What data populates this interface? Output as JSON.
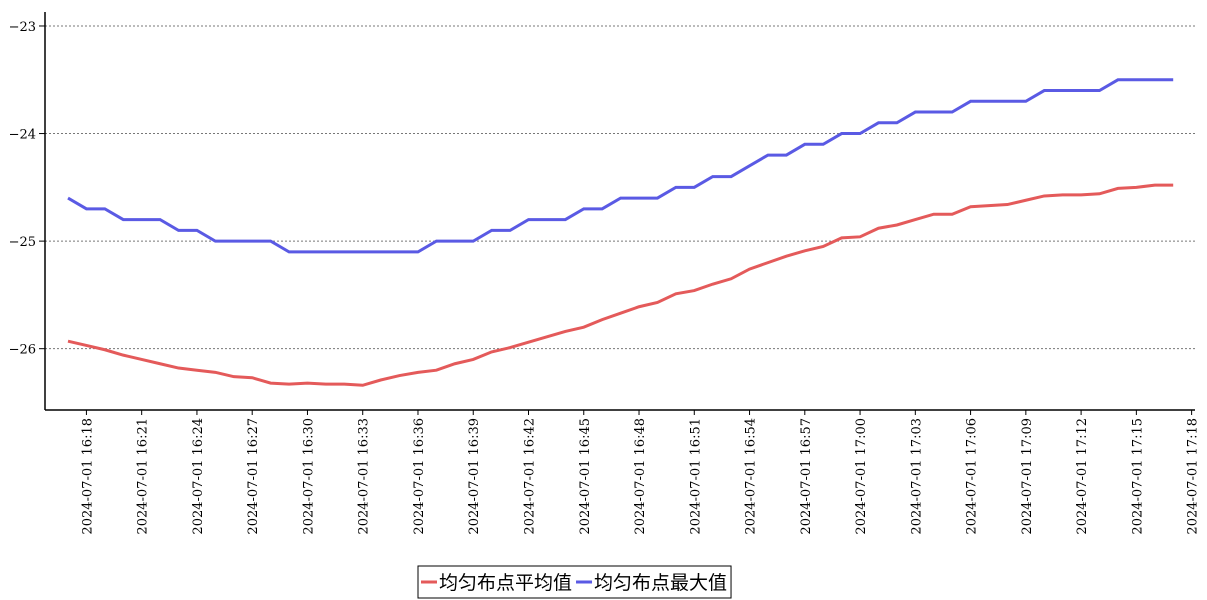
{
  "chart_data": {
    "type": "line",
    "categories": [
      null,
      "2024-07-01 16:18",
      null,
      null,
      "2024-07-01 16:21",
      null,
      null,
      "2024-07-01 16:24",
      null,
      null,
      "2024-07-01 16:27",
      null,
      null,
      "2024-07-01 16:30",
      null,
      null,
      "2024-07-01 16:33",
      null,
      null,
      "2024-07-01 16:36",
      null,
      null,
      "2024-07-01 16:39",
      null,
      null,
      "2024-07-01 16:42",
      null,
      null,
      "2024-07-01 16:45",
      null,
      null,
      "2024-07-01 16:48",
      null,
      null,
      "2024-07-01 16:51",
      null,
      null,
      "2024-07-01 16:54",
      null,
      null,
      "2024-07-01 16:57",
      null,
      null,
      "2024-07-01 17:00",
      null,
      null,
      "2024-07-01 17:03",
      null,
      null,
      "2024-07-01 17:06",
      null,
      null,
      "2024-07-01 17:09",
      null,
      null,
      "2024-07-01 17:12",
      null,
      null,
      "2024-07-01 17:15",
      null,
      null,
      "2024-07-01 17:18"
    ],
    "series": [
      {
        "name": "均匀布点平均值",
        "color": "#e45a5a",
        "values": [
          -25.93,
          -25.97,
          -26.01,
          -26.06,
          -26.1,
          -26.14,
          -26.18,
          -26.2,
          -26.22,
          -26.26,
          -26.27,
          -26.32,
          -26.33,
          -26.32,
          -26.33,
          -26.33,
          -26.34,
          -26.29,
          -26.25,
          -26.22,
          -26.2,
          -26.14,
          -26.1,
          -26.03,
          -25.99,
          -25.94,
          -25.89,
          -25.84,
          -25.8,
          -25.73,
          -25.67,
          -25.61,
          -25.57,
          -25.49,
          -25.46,
          -25.4,
          -25.35,
          -25.26,
          -25.2,
          -25.14,
          -25.09,
          -25.05,
          -24.97,
          -24.96,
          -24.88,
          -24.85,
          -24.8,
          -24.75,
          -24.75,
          -24.68,
          -24.67,
          -24.66,
          -24.62,
          -24.58,
          -24.57,
          -24.57,
          -24.56,
          -24.51,
          -24.5,
          -24.48,
          -24.48,
          null
        ]
      },
      {
        "name": "均匀布点最大值",
        "color": "#5a5ae4",
        "values": [
          -24.6,
          -24.7,
          -24.7,
          -24.8,
          -24.8,
          -24.8,
          -24.9,
          -24.9,
          -25.0,
          -25.0,
          -25.0,
          -25.0,
          -25.1,
          -25.1,
          -25.1,
          -25.1,
          -25.1,
          -25.1,
          -25.1,
          -25.1,
          -25.0,
          -25.0,
          -25.0,
          -24.9,
          -24.9,
          -24.8,
          -24.8,
          -24.8,
          -24.7,
          -24.7,
          -24.6,
          -24.6,
          -24.6,
          -24.5,
          -24.5,
          -24.4,
          -24.4,
          -24.3,
          -24.2,
          -24.2,
          -24.1,
          -24.1,
          -24.0,
          -24.0,
          -23.9,
          -23.9,
          -23.8,
          -23.8,
          -23.8,
          -23.7,
          -23.7,
          -23.7,
          -23.7,
          -23.6,
          -23.6,
          -23.6,
          -23.6,
          -23.5,
          -23.5,
          -23.5,
          -23.5,
          null
        ]
      }
    ],
    "ylim": [
      -26.57,
      -22.87
    ],
    "yticks": [
      {
        "value": -26,
        "label": "−26"
      },
      {
        "value": -25,
        "label": "−25"
      },
      {
        "value": -24,
        "label": "−24"
      },
      {
        "value": -23,
        "label": "−23"
      }
    ],
    "grid": true,
    "legend": "bottom"
  }
}
